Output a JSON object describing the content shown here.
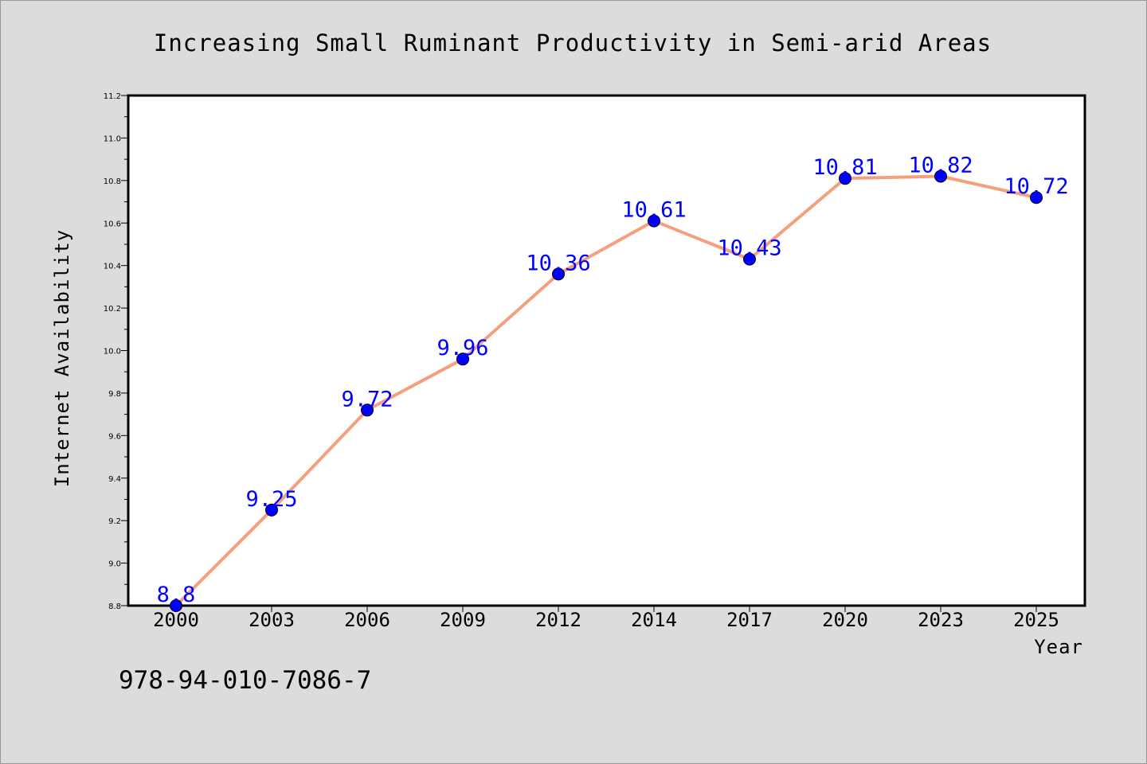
{
  "chart_data": {
    "type": "line",
    "title": "Increasing Small Ruminant Productivity in Semi-arid Areas",
    "xlabel": "Year",
    "ylabel": "Internet Availability",
    "categories": [
      "2000",
      "2003",
      "2006",
      "2009",
      "2012",
      "2014",
      "2017",
      "2020",
      "2023",
      "2025"
    ],
    "series": [
      {
        "values": [
          8.8,
          9.25,
          9.72,
          9.96,
          10.36,
          10.61,
          10.43,
          10.81,
          10.82,
          10.72
        ],
        "labels": [
          "8.8",
          "9.25",
          "9.72",
          "9.96",
          "10.36",
          "10.61",
          "10.43",
          "10.81",
          "10.82",
          "10.72"
        ]
      }
    ],
    "ylim": [
      8.8,
      11.2
    ],
    "yticks": [
      "8.8",
      "9.0",
      "9.2",
      "9.4",
      "9.6",
      "9.8",
      "10.0",
      "10.2",
      "10.4",
      "10.6",
      "10.8",
      "11.0",
      "11.2"
    ],
    "grid": false,
    "line_color": "#f4a07e",
    "marker_color": "#0000ff",
    "label_color": "#0000ff",
    "background_color": "#dcdcdc",
    "plot_background": "#ffffff"
  },
  "footer": {
    "code": "978-94-010-7086-7"
  }
}
